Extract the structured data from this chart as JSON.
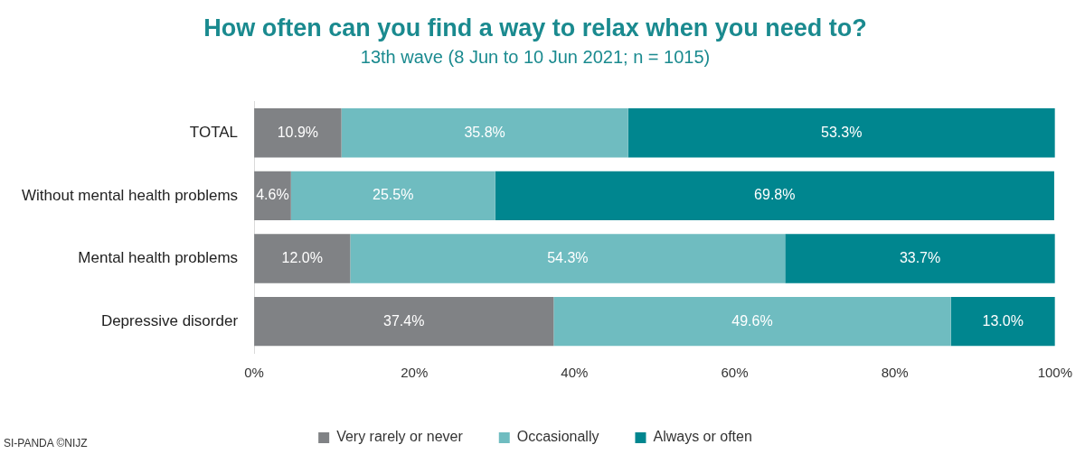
{
  "chart_data": {
    "type": "bar",
    "orientation": "horizontal",
    "stacked": true,
    "title": "How often can you find a way to relax when you need to?",
    "subtitle": "13th wave (8 Jun to 10 Jun 2021; n = 1015)",
    "categories": [
      "TOTAL",
      "Without mental health problems",
      "Mental health problems",
      "Depressive disorder"
    ],
    "series": [
      {
        "name": "Very rarely or never",
        "color": "#808285",
        "values": [
          10.9,
          4.6,
          12.0,
          37.4
        ],
        "value_labels": [
          "10.9%",
          "4.6%",
          "12.0%",
          "37.4%"
        ]
      },
      {
        "name": "Occasionally",
        "color": "#6fbcc0",
        "values": [
          35.8,
          25.5,
          54.3,
          49.6
        ],
        "value_labels": [
          "35.8%",
          "25.5%",
          "54.3%",
          "49.6%"
        ]
      },
      {
        "name": "Always or often",
        "color": "#00868f",
        "values": [
          53.3,
          69.8,
          33.7,
          13.0
        ],
        "value_labels": [
          "53.3%",
          "69.8%",
          "33.7%",
          "13.0%"
        ]
      }
    ],
    "xlim": [
      0,
      100
    ],
    "xticks": [
      {
        "value": 0,
        "label": "0%"
      },
      {
        "value": 20,
        "label": "20%"
      },
      {
        "value": 40,
        "label": "40%"
      },
      {
        "value": 60,
        "label": "60%"
      },
      {
        "value": 80,
        "label": "80%"
      },
      {
        "value": 100,
        "label": "100%"
      }
    ],
    "grid": false,
    "legend": "bottom",
    "annotations": [
      "SI-PANDA ©NIJZ"
    ]
  }
}
